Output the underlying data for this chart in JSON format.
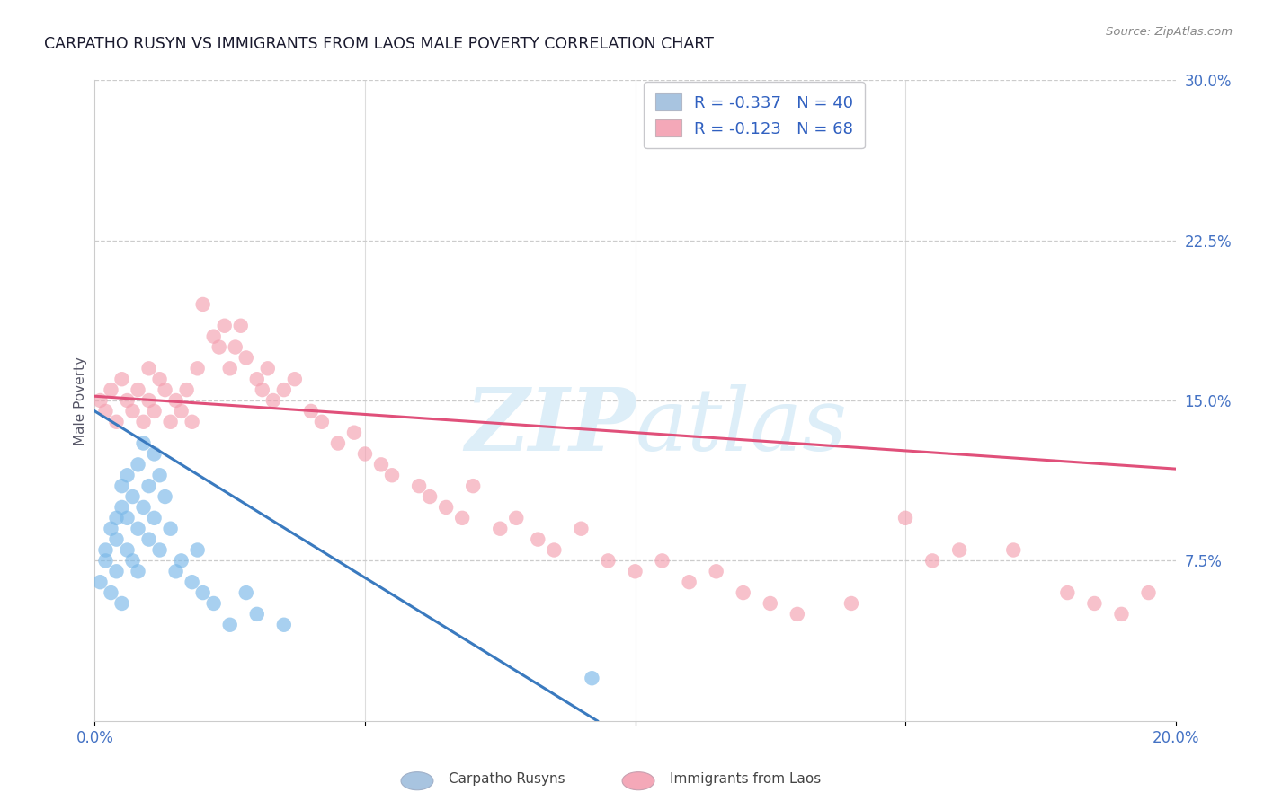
{
  "title": "CARPATHO RUSYN VS IMMIGRANTS FROM LAOS MALE POVERTY CORRELATION CHART",
  "source": "Source: ZipAtlas.com",
  "ylabel": "Male Poverty",
  "right_yticks": [
    "30.0%",
    "22.5%",
    "15.0%",
    "7.5%"
  ],
  "right_ytick_vals": [
    0.3,
    0.225,
    0.15,
    0.075
  ],
  "xlim": [
    0.0,
    0.2
  ],
  "ylim": [
    0.0,
    0.3
  ],
  "legend1_label": "R = -0.337   N = 40",
  "legend2_label": "R = -0.123   N = 68",
  "legend_color1": "#a8c4e0",
  "legend_color2": "#f4a8b8",
  "blue_color": "#7ab8e8",
  "pink_color": "#f4a0b0",
  "blue_line_color": "#3a7abf",
  "pink_line_color": "#e0507a",
  "axis_label_color": "#4472c4",
  "watermark_color": "#ddeef8",
  "blue_x": [
    0.001,
    0.002,
    0.002,
    0.003,
    0.003,
    0.004,
    0.004,
    0.004,
    0.005,
    0.005,
    0.005,
    0.006,
    0.006,
    0.006,
    0.007,
    0.007,
    0.008,
    0.008,
    0.008,
    0.009,
    0.009,
    0.01,
    0.01,
    0.011,
    0.011,
    0.012,
    0.012,
    0.013,
    0.014,
    0.015,
    0.016,
    0.018,
    0.019,
    0.02,
    0.022,
    0.025,
    0.028,
    0.03,
    0.035,
    0.092
  ],
  "blue_y": [
    0.065,
    0.075,
    0.08,
    0.06,
    0.09,
    0.07,
    0.085,
    0.095,
    0.055,
    0.1,
    0.11,
    0.08,
    0.095,
    0.115,
    0.075,
    0.105,
    0.07,
    0.09,
    0.12,
    0.1,
    0.13,
    0.085,
    0.11,
    0.095,
    0.125,
    0.08,
    0.115,
    0.105,
    0.09,
    0.07,
    0.075,
    0.065,
    0.08,
    0.06,
    0.055,
    0.045,
    0.06,
    0.05,
    0.045,
    0.02
  ],
  "pink_x": [
    0.001,
    0.002,
    0.003,
    0.004,
    0.005,
    0.006,
    0.007,
    0.008,
    0.009,
    0.01,
    0.01,
    0.011,
    0.012,
    0.013,
    0.014,
    0.015,
    0.016,
    0.017,
    0.018,
    0.019,
    0.02,
    0.022,
    0.023,
    0.024,
    0.025,
    0.026,
    0.027,
    0.028,
    0.03,
    0.031,
    0.032,
    0.033,
    0.035,
    0.037,
    0.04,
    0.042,
    0.045,
    0.048,
    0.05,
    0.053,
    0.055,
    0.06,
    0.062,
    0.065,
    0.068,
    0.07,
    0.075,
    0.078,
    0.082,
    0.085,
    0.09,
    0.095,
    0.1,
    0.105,
    0.11,
    0.115,
    0.12,
    0.125,
    0.13,
    0.14,
    0.15,
    0.155,
    0.16,
    0.17,
    0.18,
    0.185,
    0.19,
    0.195
  ],
  "pink_y": [
    0.15,
    0.145,
    0.155,
    0.14,
    0.16,
    0.15,
    0.145,
    0.155,
    0.14,
    0.165,
    0.15,
    0.145,
    0.16,
    0.155,
    0.14,
    0.15,
    0.145,
    0.155,
    0.14,
    0.165,
    0.195,
    0.18,
    0.175,
    0.185,
    0.165,
    0.175,
    0.185,
    0.17,
    0.16,
    0.155,
    0.165,
    0.15,
    0.155,
    0.16,
    0.145,
    0.14,
    0.13,
    0.135,
    0.125,
    0.12,
    0.115,
    0.11,
    0.105,
    0.1,
    0.095,
    0.11,
    0.09,
    0.095,
    0.085,
    0.08,
    0.09,
    0.075,
    0.07,
    0.075,
    0.065,
    0.07,
    0.06,
    0.055,
    0.05,
    0.055,
    0.095,
    0.075,
    0.08,
    0.08,
    0.06,
    0.055,
    0.05,
    0.06
  ],
  "blue_line_x0": 0.0,
  "blue_line_y0": 0.145,
  "blue_line_x1": 0.093,
  "blue_line_y1": 0.0,
  "pink_line_x0": 0.0,
  "pink_line_y0": 0.152,
  "pink_line_x1": 0.2,
  "pink_line_y1": 0.118
}
